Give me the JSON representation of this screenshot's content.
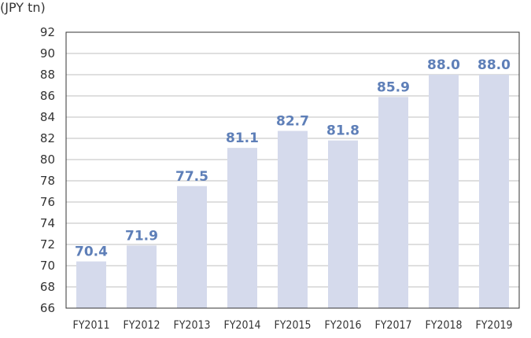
{
  "chart_data": {
    "type": "bar",
    "unit_label": "(JPY tn)",
    "categories": [
      "FY2011",
      "FY2012",
      "FY2013",
      "FY2014",
      "FY2015",
      "FY2016",
      "FY2017",
      "FY2018",
      "FY2019"
    ],
    "values": [
      70.4,
      71.9,
      77.5,
      81.1,
      82.7,
      81.8,
      85.9,
      88.0,
      88.0
    ],
    "data_labels": [
      "70.4",
      "71.9",
      "77.5",
      "81.1",
      "82.7",
      "81.8",
      "85.9",
      "88.0",
      "88.0"
    ],
    "yticks": [
      66,
      68,
      70,
      72,
      74,
      76,
      78,
      80,
      82,
      84,
      86,
      88,
      90,
      92
    ],
    "ylim": [
      66,
      92
    ],
    "grid": true,
    "title": "",
    "xlabel": "",
    "ylabel": "",
    "colors": {
      "bar": "#d5daec",
      "label": "#5e7fb8",
      "grid": "#bfbfbf",
      "axis": "#333333"
    }
  }
}
